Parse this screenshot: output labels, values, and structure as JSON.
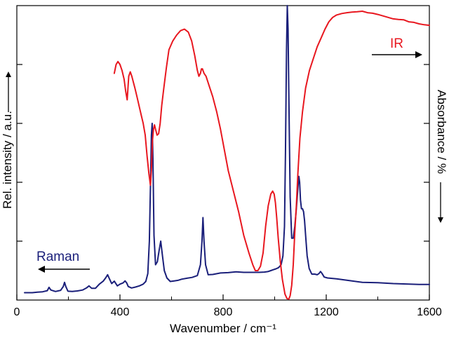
{
  "chart_data": {
    "type": "line",
    "title": "",
    "xlabel": "Wavenumber / cm⁻¹",
    "ylabel_left": "Rel. intensity / a.u.",
    "ylabel_right": "Absorbance / %",
    "xlim": [
      0,
      1600
    ],
    "ylim": [
      0,
      100
    ],
    "x_ticks": [
      0,
      400,
      800,
      1200,
      1600
    ],
    "y_ticks_unlabeled": true,
    "grid": false,
    "legend": "none",
    "annotations": [
      {
        "text": "Raman",
        "series": "Raman",
        "arrow": "left"
      },
      {
        "text": "IR",
        "series": "IR",
        "arrow": "right"
      }
    ],
    "series": [
      {
        "name": "Raman",
        "color": "#1a1f7a",
        "x": [
          30,
          60,
          80,
          100,
          118,
          125,
          132,
          150,
          170,
          180,
          185,
          190,
          198,
          215,
          235,
          255,
          270,
          280,
          290,
          305,
          320,
          335,
          345,
          352,
          358,
          368,
          378,
          390,
          400,
          412,
          420,
          426,
          432,
          445,
          460,
          475,
          490,
          500,
          508,
          514,
          518,
          522,
          525,
          528,
          532,
          538,
          545,
          552,
          558,
          565,
          572,
          582,
          595,
          610,
          625,
          640,
          660,
          680,
          700,
          712,
          718,
          722,
          726,
          732,
          742,
          760,
          790,
          820,
          850,
          880,
          910,
          940,
          960,
          975,
          985,
          995,
          1005,
          1015,
          1025,
          1032,
          1038,
          1042,
          1046,
          1049,
          1052,
          1056,
          1060,
          1066,
          1072,
          1078,
          1084,
          1090,
          1094,
          1097,
          1100,
          1104,
          1108,
          1112,
          1116,
          1120,
          1126,
          1134,
          1144,
          1155,
          1165,
          1172,
          1178,
          1184,
          1192,
          1205,
          1240,
          1290,
          1340,
          1400,
          1460,
          1520,
          1560,
          1600
        ],
        "values": [
          2.5,
          2.5,
          2.7,
          2.8,
          3.2,
          4.3,
          3.4,
          2.9,
          3.3,
          4.6,
          6.0,
          4.6,
          3.0,
          2.9,
          3.1,
          3.4,
          4.1,
          4.8,
          4.0,
          4.0,
          5.4,
          6.4,
          7.6,
          8.6,
          7.4,
          5.6,
          6.4,
          4.8,
          5.4,
          5.8,
          6.5,
          5.8,
          4.6,
          4.1,
          4.4,
          4.8,
          5.4,
          6.3,
          9.0,
          20,
          38,
          56,
          60,
          48,
          22,
          12,
          13,
          17,
          20,
          15,
          10,
          7.5,
          6.3,
          6.5,
          6.7,
          7.1,
          7.4,
          7.7,
          8.3,
          12,
          20,
          28,
          20,
          12,
          8.6,
          8.7,
          9.2,
          9.3,
          9.6,
          9.4,
          9.4,
          9.4,
          9.5,
          9.7,
          10.0,
          10.3,
          10.6,
          11.0,
          12,
          15,
          25,
          50,
          85,
          100,
          92,
          62,
          35,
          21,
          21,
          25,
          31,
          38,
          42,
          40,
          34,
          31,
          31,
          30,
          27,
          22,
          15,
          10.7,
          8.8,
          8.8,
          8.6,
          9.0,
          9.7,
          9.0,
          7.8,
          7.5,
          7.2,
          6.6,
          6.0,
          5.9,
          5.6,
          5.4,
          5.3,
          5.3
        ]
      },
      {
        "name": "IR",
        "color": "#e8171f",
        "x": [
          378,
          385,
          392,
          400,
          408,
          416,
          422,
          428,
          434,
          440,
          446,
          452,
          458,
          466,
          474,
          482,
          490,
          498,
          505,
          512,
          518,
          522,
          526,
          530,
          534,
          538,
          544,
          550,
          556,
          562,
          570,
          580,
          590,
          605,
          620,
          635,
          650,
          665,
          678,
          690,
          700,
          706,
          712,
          716,
          720,
          726,
          734,
          745,
          760,
          775,
          790,
          805,
          820,
          840,
          860,
          880,
          900,
          915,
          925,
          935,
          945,
          955,
          965,
          975,
          985,
          992,
          998,
          1003,
          1008,
          1014,
          1022,
          1030,
          1040,
          1048,
          1055,
          1060,
          1066,
          1072,
          1078,
          1084,
          1090,
          1098,
          1108,
          1120,
          1135,
          1150,
          1165,
          1180,
          1195,
          1210,
          1225,
          1240,
          1260,
          1280,
          1300,
          1320,
          1340,
          1360,
          1380,
          1400,
          1420,
          1440,
          1460,
          1480,
          1500,
          1520,
          1540,
          1560,
          1580,
          1600
        ],
        "values": [
          77,
          80,
          81,
          80,
          78,
          75,
          71,
          68,
          76,
          77.5,
          76,
          74,
          72,
          69,
          66,
          63,
          60,
          56,
          49,
          43,
          39,
          44,
          54,
          58,
          59.5,
          58,
          56,
          56.5,
          60,
          66,
          72,
          79,
          85,
          88,
          90,
          91.5,
          92,
          91,
          88,
          83,
          78,
          76,
          77,
          78.5,
          78.5,
          77,
          76,
          73,
          69,
          64,
          58,
          51,
          44,
          37,
          30,
          22,
          16,
          12,
          10,
          10,
          11.5,
          16,
          25,
          32,
          36,
          37,
          36,
          33,
          28,
          21,
          13,
          7,
          2,
          0.5,
          0.3,
          1.5,
          5,
          12,
          23,
          32,
          43,
          55,
          64,
          72,
          78,
          82,
          86,
          89,
          92,
          94.5,
          96,
          96.8,
          97.3,
          97.6,
          97.8,
          97.9,
          98.1,
          97.6,
          97.4,
          97.0,
          96.5,
          96.0,
          95.5,
          95.3,
          95.2,
          94.5,
          94.3,
          93.8,
          93.5,
          93.3
        ]
      }
    ]
  }
}
